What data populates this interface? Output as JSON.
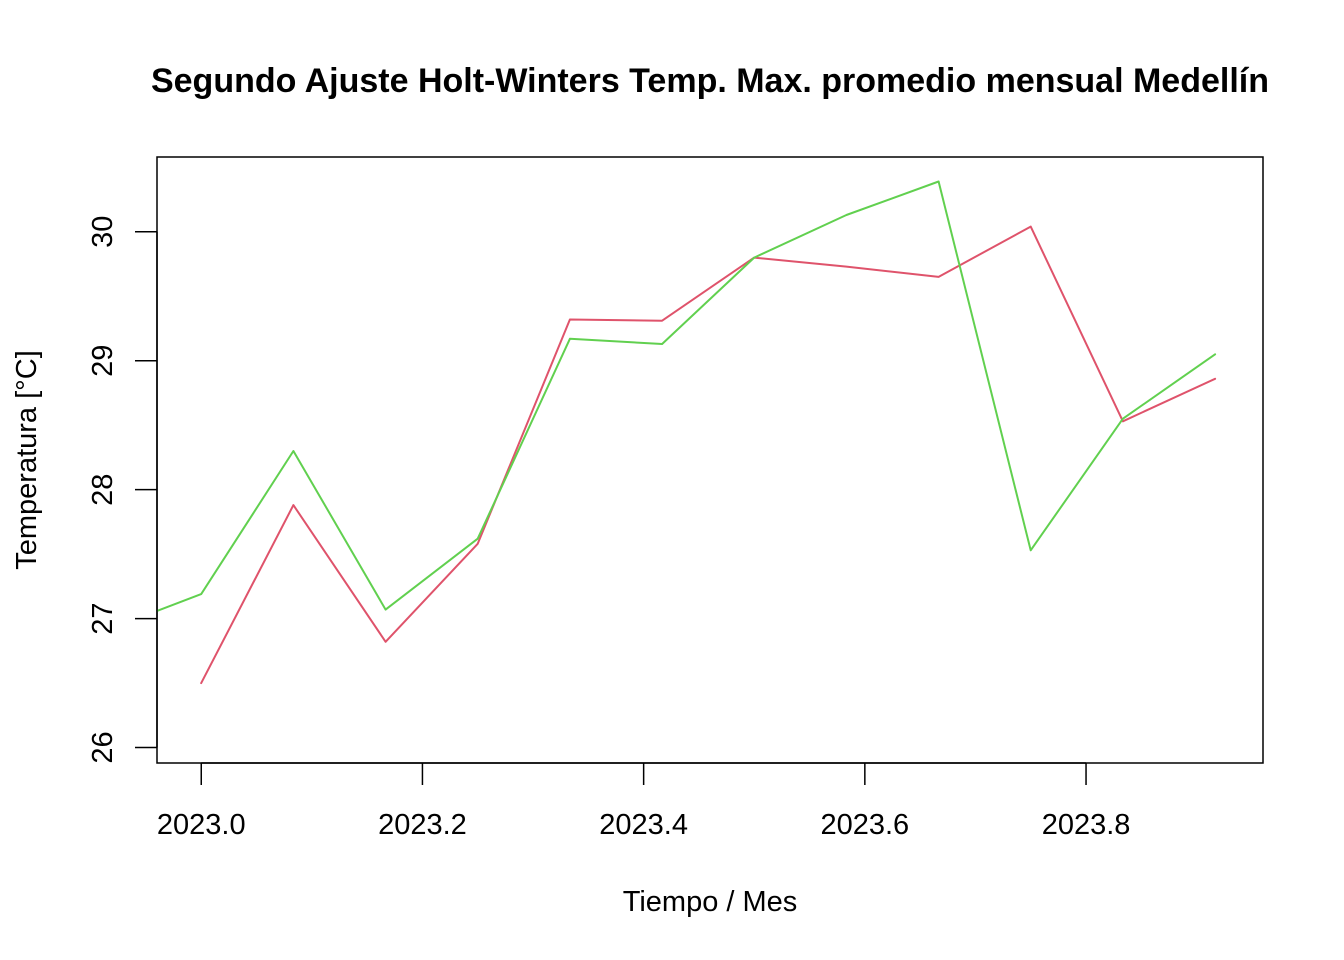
{
  "chart_data": {
    "type": "line",
    "title": "Segundo Ajuste Holt-Winters Temp. Max. promedio mensual Medellín",
    "xlabel": "Tiempo / Mes",
    "ylabel": "Temperatura [°C]",
    "xlim": [
      2022.96,
      2023.96
    ],
    "ylim": [
      25.88,
      30.58
    ],
    "x_ticks": [
      2023.0,
      2023.2,
      2023.4,
      2023.6,
      2023.8
    ],
    "x_tick_labels": [
      "2023.0",
      "2023.2",
      "2023.4",
      "2023.6",
      "2023.8"
    ],
    "y_ticks": [
      26,
      27,
      28,
      29,
      30
    ],
    "y_tick_labels": [
      "26",
      "27",
      "28",
      "29",
      "30"
    ],
    "grid": false,
    "series": [
      {
        "color": "#DF536B",
        "x": [
          2023.0,
          2023.0833,
          2023.1667,
          2023.25,
          2023.3333,
          2023.4167,
          2023.5,
          2023.5833,
          2023.6667,
          2023.75,
          2023.8333,
          2023.9167
        ],
        "values": [
          26.5,
          27.88,
          26.82,
          27.58,
          29.32,
          29.31,
          29.8,
          29.73,
          29.65,
          30.04,
          28.53,
          28.86
        ]
      },
      {
        "color": "#61D04F",
        "x": [
          2022.96,
          2023.0,
          2023.0833,
          2023.1667,
          2023.25,
          2023.3333,
          2023.4167,
          2023.5,
          2023.5833,
          2023.6667,
          2023.75,
          2023.8333,
          2023.9167
        ],
        "values": [
          27.06,
          27.19,
          28.3,
          27.07,
          27.62,
          29.17,
          29.13,
          29.8,
          30.13,
          30.39,
          27.53,
          28.55,
          29.05
        ]
      }
    ]
  }
}
